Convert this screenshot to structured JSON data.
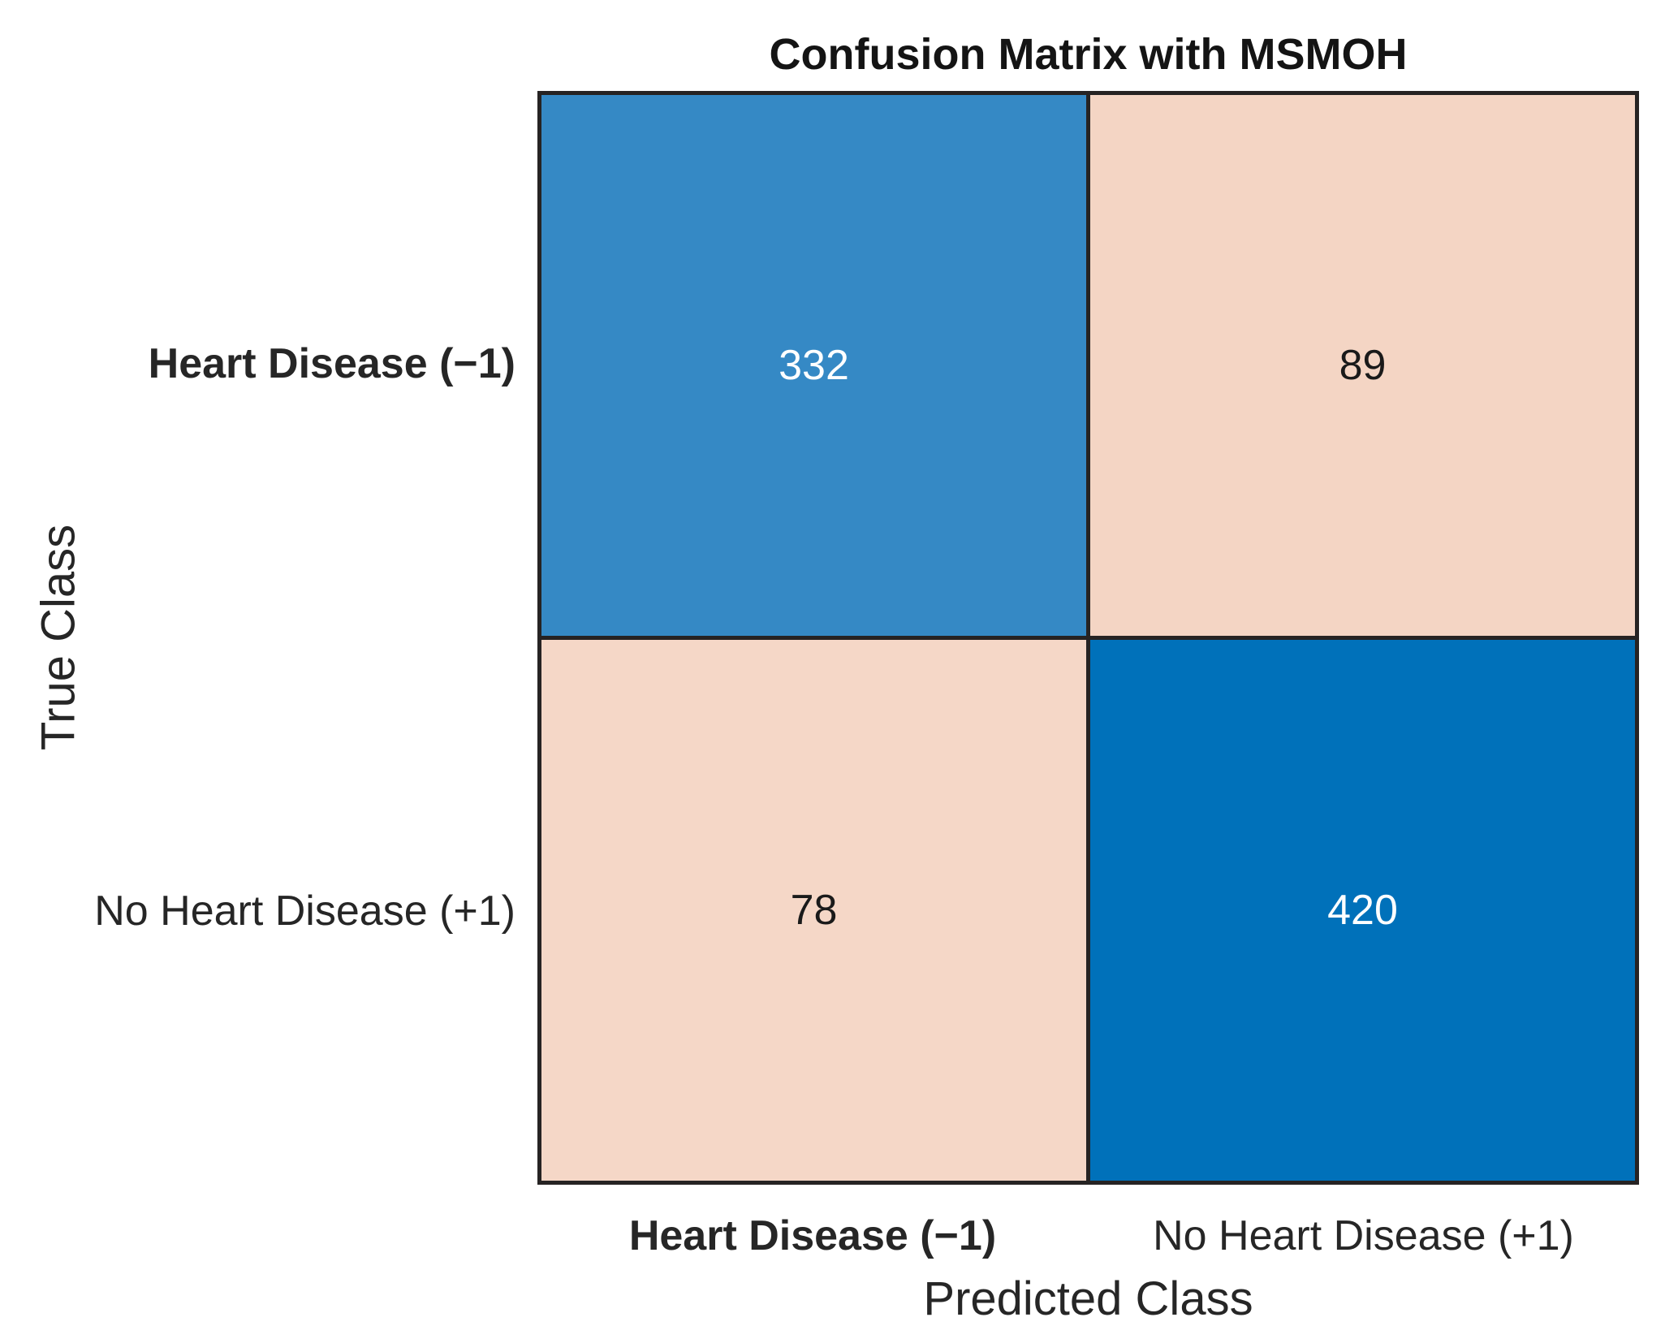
{
  "title": "Confusion Matrix with MSMOH",
  "axes": {
    "x_label": "Predicted Class",
    "y_label": "True Class",
    "x_ticks": [
      {
        "label": "Heart Disease (−1)",
        "bold": true
      },
      {
        "label": "No Heart Disease (+1)",
        "bold": false
      }
    ],
    "y_ticks": [
      {
        "label": "Heart Disease (−1)",
        "bold": true
      },
      {
        "label": "No Heart Disease (+1)",
        "bold": false
      }
    ]
  },
  "cells": [
    {
      "row": "Heart Disease (−1)",
      "col": "Heart Disease (−1)",
      "value": "332",
      "bg": "#3589C5",
      "fg": "#FFFFFF"
    },
    {
      "row": "Heart Disease (−1)",
      "col": "No Heart Disease (+1)",
      "value": "89",
      "bg": "#F4D5C4",
      "fg": "#1A1A1A"
    },
    {
      "row": "No Heart Disease (+1)",
      "col": "Heart Disease (−1)",
      "value": "78",
      "bg": "#F5D7C7",
      "fg": "#1A1A1A"
    },
    {
      "row": "No Heart Disease (+1)",
      "col": "No Heart Disease (+1)",
      "value": "420",
      "bg": "#0071BA",
      "fg": "#FFFFFF"
    }
  ],
  "colors": {
    "diagonal_low": "#3589C5",
    "diagonal_high": "#0071BA",
    "off_diagonal": "#F4D5C4",
    "grid_line": "#262323",
    "text": "#262626",
    "background": "#FFFFFF"
  },
  "chart_data": {
    "type": "heatmap",
    "title": "Confusion Matrix with MSMOH",
    "xlabel": "Predicted Class",
    "ylabel": "True Class",
    "categories": [
      "Heart Disease (−1)",
      "No Heart Disease (+1)"
    ],
    "rows_are": "true class",
    "columns_are": "predicted class",
    "matrix": [
      [
        332,
        89
      ],
      [
        78,
        420
      ]
    ],
    "legend": "none",
    "grid": true
  }
}
